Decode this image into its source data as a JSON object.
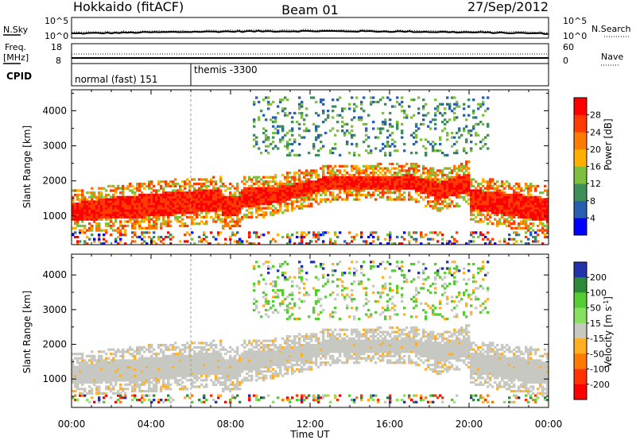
{
  "header": {
    "station": "Hokkaido (fitACF)",
    "beam": "Beam 01",
    "date": "27/Sep/2012"
  },
  "noise_panel": {
    "left_label": "N.Sky",
    "right_label": "N.Search",
    "left_ticks": [
      "10^5",
      "10^0"
    ],
    "right_ticks": [
      "10^5",
      "10^0"
    ]
  },
  "freq_panel": {
    "label_line1": "Freq.",
    "label_line2": "[MHz]",
    "right_label": "Nave",
    "left_ticks": [
      "18",
      "8"
    ],
    "right_ticks": [
      "60",
      "0"
    ]
  },
  "cpid_panel": {
    "label": "CPID",
    "modes": [
      {
        "start_ut": 0,
        "text": "normal (fast) 151"
      },
      {
        "start_ut": 6.0,
        "text": "themis -3300"
      }
    ]
  },
  "chart_data": [
    {
      "type": "heatmap",
      "name": "power",
      "ylabel": "Slant Range [km]",
      "xlabel": "",
      "xlim": [
        0,
        24
      ],
      "ylim": [
        180,
        4600
      ],
      "yticks": [
        1000,
        2000,
        3000,
        4000
      ],
      "colorbar": {
        "label": "Power [dB]",
        "ticks": [
          "4",
          "8",
          "12",
          "16",
          "20",
          "24",
          "28"
        ],
        "colors": [
          "#0000ff",
          "#2a5fb0",
          "#3f8f5a",
          "#7fbf3f",
          "#ffb000",
          "#ff7a00",
          "#ff3b00",
          "#ff0000"
        ]
      }
    },
    {
      "type": "heatmap",
      "name": "velocity",
      "ylabel": "Slant Range [km]",
      "xlabel": "Time UT",
      "xlim": [
        0,
        24
      ],
      "ylim": [
        180,
        4600
      ],
      "yticks": [
        1000,
        2000,
        3000,
        4000
      ],
      "xticks": [
        "00:00",
        "04:00",
        "08:00",
        "12:00",
        "16:00",
        "20:00",
        "00:00"
      ],
      "colorbar": {
        "label": "Velocity [m s",
        "label_sup": "-1",
        "label_end": "]",
        "ticks": [
          "200",
          "100",
          "50",
          "15",
          "-15",
          "-50",
          "-100",
          "-200"
        ],
        "colors": [
          "#2233aa",
          "#2e8a3a",
          "#55cc33",
          "#88e060",
          "#c8c8c2",
          "#ffb020",
          "#ff7a00",
          "#ff3300",
          "#ff0000"
        ]
      }
    }
  ]
}
